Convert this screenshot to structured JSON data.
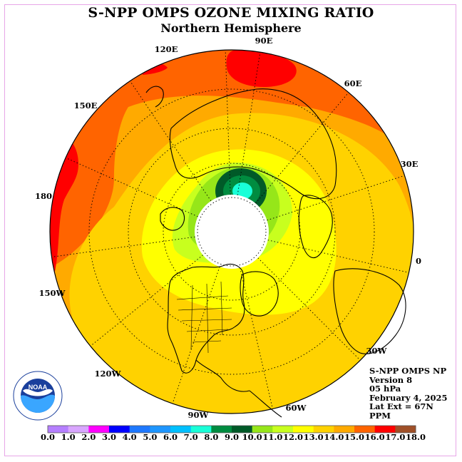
{
  "title": "S-NPP OMPS OZONE MIXING RATIO",
  "subtitle": "Northern Hemisphere",
  "longitude_labels": [
    "90E",
    "60E",
    "30E",
    "0",
    "30W",
    "60W",
    "90W",
    "120W",
    "150W",
    "180",
    "150E",
    "120E"
  ],
  "info": {
    "product": "S-NPP OMPS NP",
    "version": "Version 8",
    "level": "05 hPa",
    "date": "February 4, 2025",
    "lat_ext": "Lat Ext = 67N",
    "unit": "PPM"
  },
  "logo": {
    "text": "NOAA",
    "ring_text": "NATIONAL OCEANIC AND ATMOSPHERIC ADMINISTRATION · U.S. DEPARTMENT OF COMMERCE"
  },
  "colorbar": {
    "labels": [
      "0.0",
      "1.0",
      "2.0",
      "3.0",
      "4.0",
      "5.0",
      "6.0",
      "7.0",
      "8.0",
      "9.0",
      "10.0",
      "11.0",
      "12.0",
      "13.0",
      "14.0",
      "15.0",
      "16.0",
      "17.0",
      "18.0"
    ],
    "colors": [
      "#b57fff",
      "#d9a6ff",
      "#ff00ff",
      "#0000ff",
      "#1e78ff",
      "#1e96ff",
      "#00c0ff",
      "#19ffd8",
      "#008c40",
      "#005a28",
      "#96e619",
      "#c8ff1e",
      "#ffff00",
      "#ffd200",
      "#ffaa00",
      "#ff6400",
      "#ff0000",
      "#a05028"
    ]
  },
  "colors": {
    "frame": "#e8a6e8",
    "polar_night": "#ffffff"
  }
}
